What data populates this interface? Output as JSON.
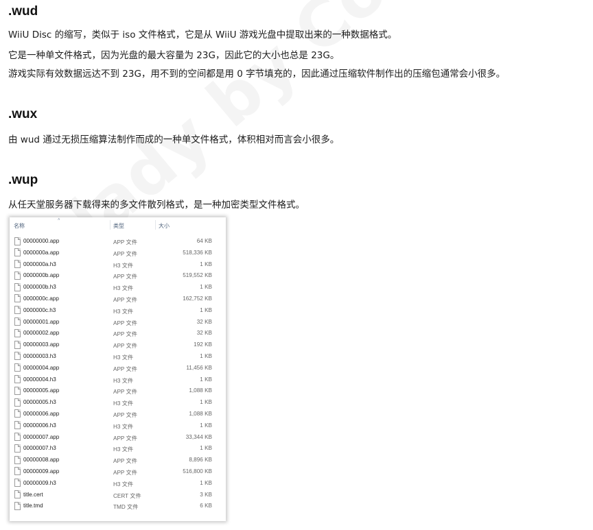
{
  "watermark": "lady by Combo",
  "wud": {
    "title": ".wud",
    "lines": [
      "WiiU Disc 的缩写，类似于 iso 文件格式，它是从 WiiU 游戏光盘中提取出来的一种数据格式。",
      "它是一种单文件格式，因为光盘的最大容量为 23G，因此它的大小也总是 23G。",
      "游戏实际有效数据远达不到 23G，用不到的空间都是用 0 字节填充的，因此通过压缩软件制作出的压缩包通常会小很多。"
    ]
  },
  "wux": {
    "title": ".wux",
    "lines": [
      "由 wud 通过无损压缩算法制作而成的一种单文件格式，体积相对而言会小很多。"
    ]
  },
  "wup": {
    "title": ".wup",
    "lines": [
      "从任天堂服务器下载得来的多文件散列格式，是一种加密类型文件格式。"
    ]
  },
  "explorer": {
    "columns": {
      "name": "名称",
      "type": "类型",
      "size": "大小"
    },
    "sort_arrow": "˄",
    "files": [
      {
        "name": "00000000.app",
        "type": "APP 文件",
        "size": "64 KB"
      },
      {
        "name": "0000000a.app",
        "type": "APP 文件",
        "size": "518,336 KB"
      },
      {
        "name": "0000000a.h3",
        "type": "H3 文件",
        "size": "1 KB"
      },
      {
        "name": "0000000b.app",
        "type": "APP 文件",
        "size": "519,552 KB"
      },
      {
        "name": "0000000b.h3",
        "type": "H3 文件",
        "size": "1 KB"
      },
      {
        "name": "0000000c.app",
        "type": "APP 文件",
        "size": "162,752 KB"
      },
      {
        "name": "0000000c.h3",
        "type": "H3 文件",
        "size": "1 KB"
      },
      {
        "name": "00000001.app",
        "type": "APP 文件",
        "size": "32 KB"
      },
      {
        "name": "00000002.app",
        "type": "APP 文件",
        "size": "32 KB"
      },
      {
        "name": "00000003.app",
        "type": "APP 文件",
        "size": "192 KB"
      },
      {
        "name": "00000003.h3",
        "type": "H3 文件",
        "size": "1 KB"
      },
      {
        "name": "00000004.app",
        "type": "APP 文件",
        "size": "11,456 KB"
      },
      {
        "name": "00000004.h3",
        "type": "H3 文件",
        "size": "1 KB"
      },
      {
        "name": "00000005.app",
        "type": "APP 文件",
        "size": "1,088 KB"
      },
      {
        "name": "00000005.h3",
        "type": "H3 文件",
        "size": "1 KB"
      },
      {
        "name": "00000006.app",
        "type": "APP 文件",
        "size": "1,088 KB"
      },
      {
        "name": "00000006.h3",
        "type": "H3 文件",
        "size": "1 KB"
      },
      {
        "name": "00000007.app",
        "type": "APP 文件",
        "size": "33,344 KB"
      },
      {
        "name": "00000007.h3",
        "type": "H3 文件",
        "size": "1 KB"
      },
      {
        "name": "00000008.app",
        "type": "APP 文件",
        "size": "8,896 KB"
      },
      {
        "name": "00000009.app",
        "type": "APP 文件",
        "size": "516,800 KB"
      },
      {
        "name": "00000009.h3",
        "type": "H3 文件",
        "size": "1 KB"
      },
      {
        "name": "title.cert",
        "type": "CERT 文件",
        "size": "3 KB"
      },
      {
        "name": "title.tmd",
        "type": "TMD 文件",
        "size": "6 KB"
      }
    ]
  }
}
